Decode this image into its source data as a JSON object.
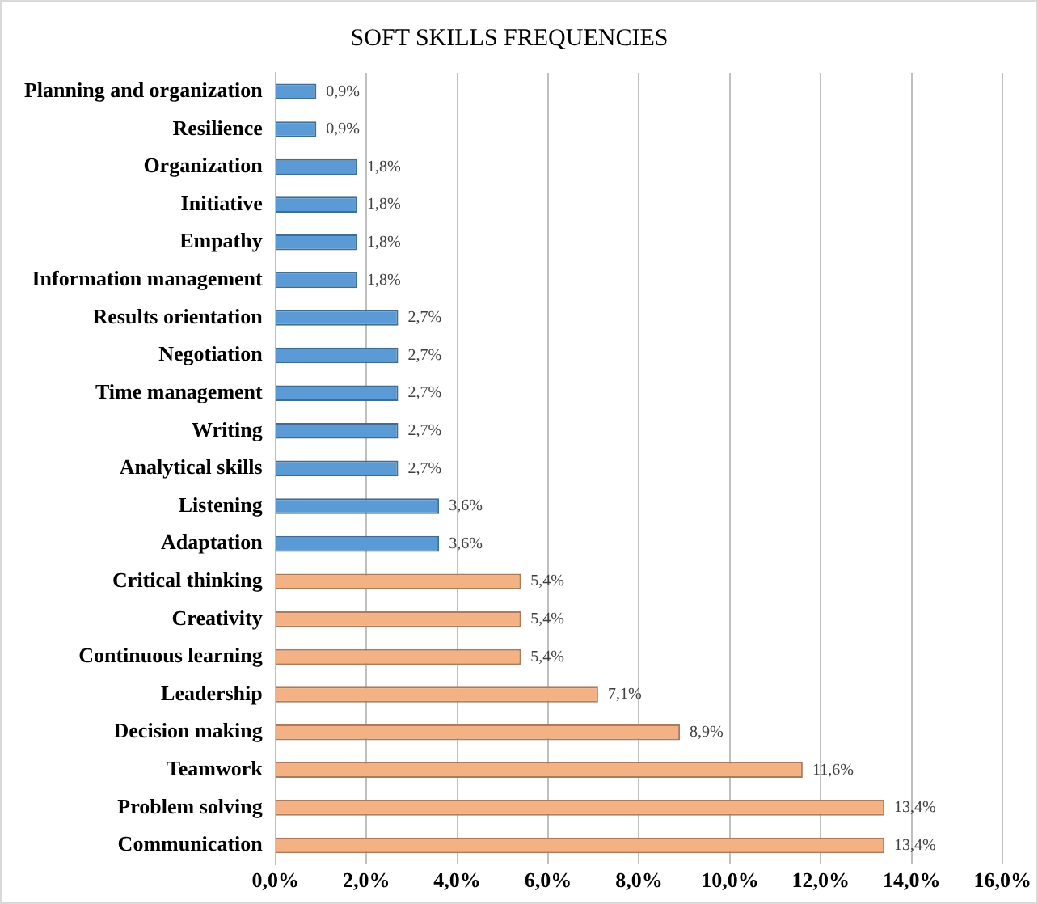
{
  "chart_data": {
    "type": "bar",
    "orientation": "horizontal",
    "title": "SOFT SKILLS FREQUENCIES",
    "categories": [
      "Planning and organization",
      "Resilience",
      "Organization",
      "Initiative",
      "Empathy",
      "Information management",
      "Results orientation",
      "Negotiation",
      "Time management",
      "Writing",
      "Analytical skills",
      "Listening",
      "Adaptation",
      "Critical thinking",
      "Creativity",
      "Continuous learning",
      "Leadership",
      "Decision making",
      "Teamwork",
      "Problem solving",
      "Communication"
    ],
    "values": [
      0.9,
      0.9,
      1.8,
      1.8,
      1.8,
      1.8,
      2.7,
      2.7,
      2.7,
      2.7,
      2.7,
      3.6,
      3.6,
      5.4,
      5.4,
      5.4,
      7.1,
      8.9,
      11.6,
      13.4,
      13.4
    ],
    "value_labels": [
      "0,9%",
      "0,9%",
      "1,8%",
      "1,8%",
      "1,8%",
      "1,8%",
      "2,7%",
      "2,7%",
      "2,7%",
      "2,7%",
      "2,7%",
      "3,6%",
      "3,6%",
      "5,4%",
      "5,4%",
      "5,4%",
      "7,1%",
      "8,9%",
      "11,6%",
      "13,4%",
      "13,4%"
    ],
    "colors": [
      "#5b9bd5",
      "#5b9bd5",
      "#5b9bd5",
      "#5b9bd5",
      "#5b9bd5",
      "#5b9bd5",
      "#5b9bd5",
      "#5b9bd5",
      "#5b9bd5",
      "#5b9bd5",
      "#5b9bd5",
      "#5b9bd5",
      "#5b9bd5",
      "#f4b183",
      "#f4b183",
      "#f4b183",
      "#f4b183",
      "#f4b183",
      "#f4b183",
      "#f4b183",
      "#f4b183"
    ],
    "xlim": [
      0,
      16
    ],
    "xticks": [
      {
        "value": 0,
        "label": "0,0%"
      },
      {
        "value": 2,
        "label": "2,0%"
      },
      {
        "value": 4,
        "label": "4,0%"
      },
      {
        "value": 6,
        "label": "6,0%"
      },
      {
        "value": 8,
        "label": "8,0%"
      },
      {
        "value": 10,
        "label": "10,0%"
      },
      {
        "value": 12,
        "label": "12,0%"
      },
      {
        "value": 14,
        "label": "14,0%"
      },
      {
        "value": 16,
        "label": "16,0%"
      }
    ],
    "grid": "x"
  }
}
